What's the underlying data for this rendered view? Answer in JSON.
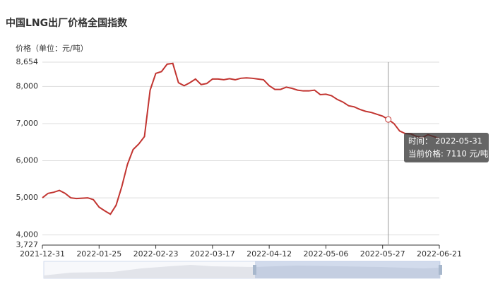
{
  "chart_data": {
    "type": "line",
    "title": "中国LNG出厂价格全国指数",
    "y_axis_label": "价格（单位：元/吨）",
    "categories": [
      "2021-12-31",
      null,
      null,
      null,
      null,
      null,
      null,
      null,
      null,
      null,
      "2022-01-25",
      null,
      null,
      null,
      null,
      null,
      null,
      null,
      null,
      null,
      "2022-02-23",
      null,
      null,
      null,
      null,
      null,
      null,
      null,
      null,
      null,
      "2022-03-17",
      null,
      null,
      null,
      null,
      null,
      null,
      null,
      null,
      null,
      "2022-04-12",
      null,
      null,
      null,
      null,
      null,
      null,
      null,
      null,
      null,
      "2022-05-06",
      null,
      null,
      null,
      null,
      null,
      null,
      null,
      null,
      null,
      "2022-05-27",
      null,
      null,
      null,
      null,
      null,
      null,
      null,
      null,
      null,
      "2022-06-21"
    ],
    "series": [
      {
        "name": "价格",
        "color": "#c23531",
        "values": [
          5000,
          5120,
          5150,
          5200,
          5120,
          5000,
          4980,
          4990,
          5000,
          4950,
          4750,
          4650,
          4560,
          4800,
          5300,
          5900,
          6300,
          6450,
          6650,
          7900,
          8350,
          8400,
          8600,
          8620,
          8100,
          8020,
          8100,
          8200,
          8050,
          8080,
          8200,
          8200,
          8180,
          8210,
          8180,
          8220,
          8230,
          8220,
          8200,
          8180,
          8020,
          7920,
          7920,
          7980,
          7950,
          7900,
          7880,
          7880,
          7900,
          7780,
          7790,
          7750,
          7650,
          7580,
          7480,
          7450,
          7380,
          7330,
          7300,
          7250,
          7200,
          7110,
          7000,
          6800,
          6730,
          6720,
          6650,
          6620,
          6700,
          6650,
          6600
        ]
      }
    ],
    "ylim": [
      3727,
      8654
    ],
    "yticks": [
      {
        "value": 3727,
        "label": "3,727"
      },
      {
        "value": 4000,
        "label": "4,000"
      },
      {
        "value": 5000,
        "label": "5,000"
      },
      {
        "value": 6000,
        "label": "6,000"
      },
      {
        "value": 7000,
        "label": "7,000"
      },
      {
        "value": 8000,
        "label": "8,000"
      },
      {
        "value": 8654,
        "label": "8,654"
      }
    ],
    "grid": true,
    "tooltip": [
      "时间：  2022-05-31",
      "当前价格: 7110 元/吨"
    ]
  }
}
